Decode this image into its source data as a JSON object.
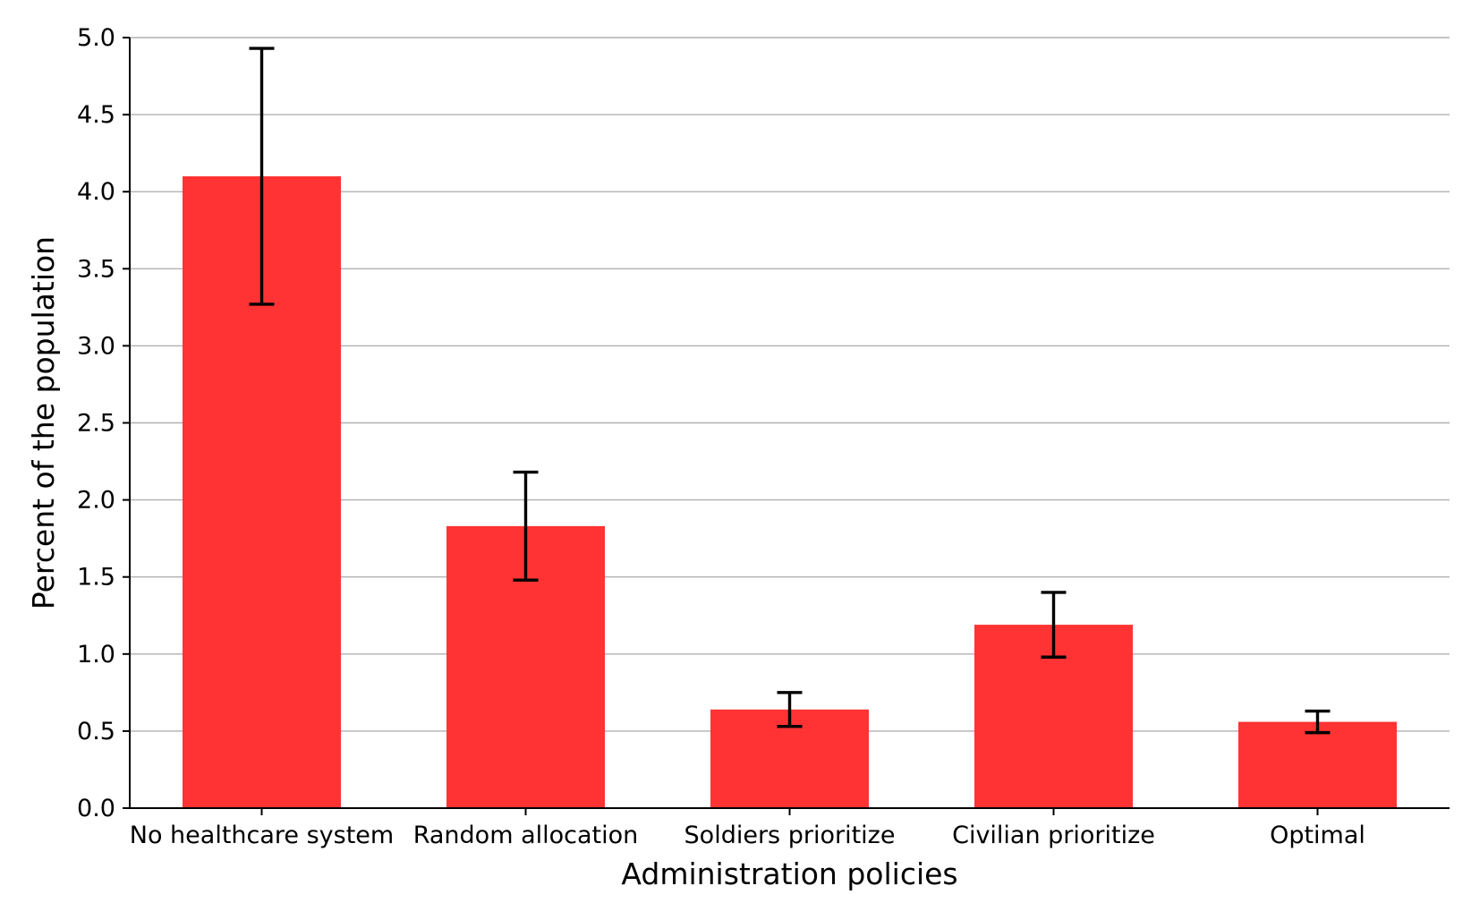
{
  "chart_data": {
    "type": "bar",
    "title": "",
    "xlabel": "Administration policies",
    "ylabel": "Percent of the population",
    "categories": [
      "No healthcare system",
      "Random allocation",
      "Soldiers prioritize",
      "Civilian prioritize",
      "Optimal"
    ],
    "values": [
      4.1,
      1.83,
      0.64,
      1.19,
      0.56
    ],
    "error_low": [
      3.27,
      1.48,
      0.53,
      0.98,
      0.49
    ],
    "error_high": [
      4.93,
      2.18,
      0.75,
      1.4,
      0.63
    ],
    "ylim": [
      0,
      5.0
    ],
    "yticks": [
      0.0,
      0.5,
      1.0,
      1.5,
      2.0,
      2.5,
      3.0,
      3.5,
      4.0,
      4.5,
      5.0
    ],
    "ytick_labels": [
      "0.0",
      "0.5",
      "1.0",
      "1.5",
      "2.0",
      "2.5",
      "3.0",
      "3.5",
      "4.0",
      "4.5",
      "5.0"
    ],
    "grid": "horizontal",
    "legend": "none",
    "bar_color": "#ff3333",
    "errorbar_color": "#000000"
  }
}
